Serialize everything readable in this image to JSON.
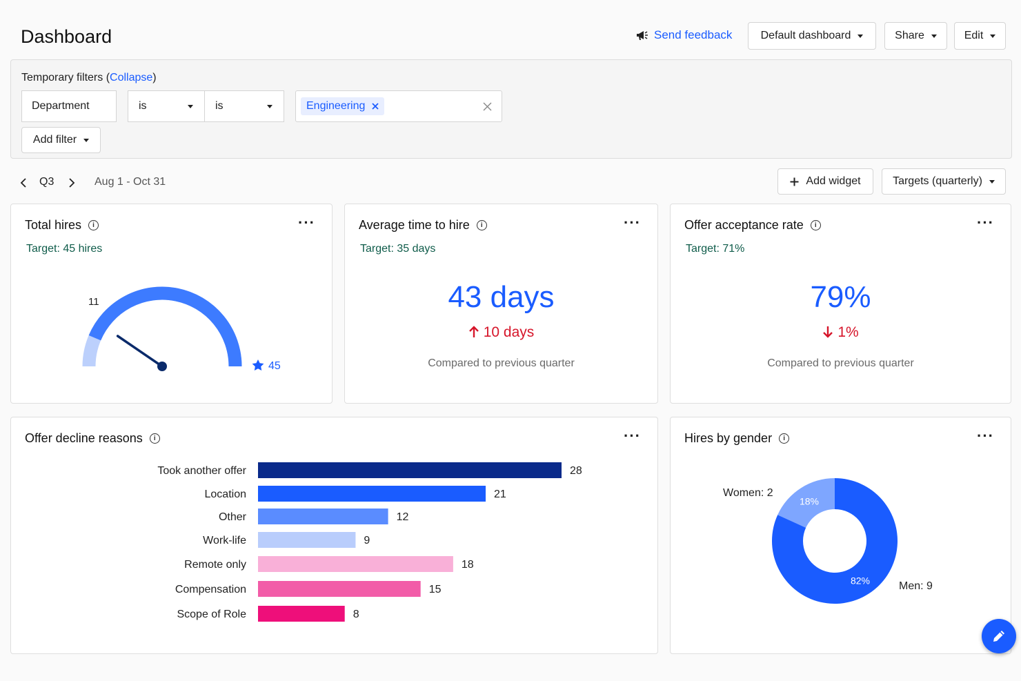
{
  "header": {
    "title": "Dashboard",
    "feedback_label": "Send feedback",
    "default_dashboard_label": "Default dashboard",
    "share_label": "Share",
    "edit_label": "Edit"
  },
  "filters": {
    "title": "Temporary filters",
    "collapse_label": "Collapse",
    "field_label": "Department",
    "operator_1": "is",
    "operator_2": "is",
    "value_chip": "Engineering",
    "add_filter_label": "Add filter"
  },
  "period": {
    "quarter": "Q3",
    "range": "Aug 1 - Oct 31",
    "add_widget_label": "Add widget",
    "targets_label": "Targets (quarterly)"
  },
  "total_hires": {
    "title": "Total hires",
    "target": "Target: 45 hires",
    "current_label": "11",
    "target_label": "45",
    "current_value": 11,
    "target_value": 45
  },
  "avg_time": {
    "title": "Average time to hire",
    "target": "Target: 35 days",
    "value": "43 days",
    "delta": "10 days",
    "compare": "Compared to previous quarter"
  },
  "offer_rate": {
    "title": "Offer acceptance rate",
    "target": "Target: 71%",
    "value": "79%",
    "delta": "1%",
    "compare": "Compared to previous quarter"
  },
  "decline": {
    "title": "Offer decline reasons"
  },
  "gender": {
    "title": "Hires by gender"
  },
  "colors": {
    "accent": "#1a5cff",
    "negative": "#d6152a",
    "target_text": "#0f5c4a"
  },
  "chart_data": [
    {
      "type": "bar",
      "orientation": "horizontal",
      "title": "Offer decline reasons",
      "categories": [
        "Took another offer",
        "Location",
        "Other",
        "Work-life",
        "Remote only",
        "Compensation",
        "Scope of Role"
      ],
      "values": [
        28,
        21,
        12,
        9,
        18,
        15,
        8
      ],
      "colors": [
        "#0a2a8a",
        "#1a5cff",
        "#5a8cff",
        "#b9cdfc",
        "#f9b0d8",
        "#f25ca8",
        "#ee0f7a"
      ]
    },
    {
      "type": "pie",
      "title": "Hires by gender",
      "categories": [
        "Women",
        "Men"
      ],
      "values": [
        2,
        9
      ],
      "percent_labels": [
        "18%",
        "82%"
      ],
      "labels": [
        "Women: 2",
        "Men: 9"
      ],
      "colors": [
        "#7ea6ff",
        "#1a5cff"
      ]
    }
  ]
}
